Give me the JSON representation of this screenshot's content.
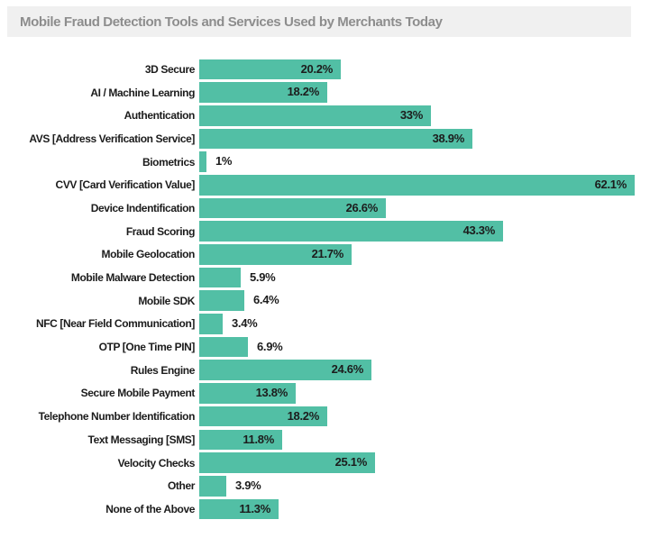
{
  "header": {
    "title": "Mobile Fraud Detection Tools and Services Used by Merchants Today"
  },
  "chart_data": {
    "type": "bar",
    "orientation": "horizontal",
    "title": "Mobile Fraud Detection Tools and Services Used by Merchants Today",
    "xlabel": "",
    "ylabel": "",
    "xlim": [
      0,
      63
    ],
    "grid": false,
    "legend": null,
    "value_suffix": "%",
    "inside_label_threshold": 10,
    "categories": [
      "3D Secure",
      "AI / Machine Learning",
      "Authentication",
      "AVS [Address Verification Service]",
      "Biometrics",
      "CVV [Card Verification Value]",
      "Device Indentification",
      "Fraud Scoring",
      "Mobile Geolocation",
      "Mobile Malware Detection",
      "Mobile SDK",
      "NFC [Near Field Communication]",
      "OTP [One Time PIN]",
      "Rules Engine",
      "Secure Mobile Payment",
      "Telephone Number Identification",
      "Text Messaging [SMS]",
      "Velocity Checks",
      "Other",
      "None of the Above"
    ],
    "values": [
      20.2,
      18.2,
      33,
      38.9,
      1,
      62.1,
      26.6,
      43.3,
      21.7,
      5.9,
      6.4,
      3.4,
      6.9,
      24.6,
      13.8,
      18.2,
      11.8,
      25.1,
      3.9,
      11.3
    ],
    "value_labels": [
      "20.2%",
      "18.2%",
      "33%",
      "38.9%",
      "1%",
      "62.1%",
      "26.6%",
      "43.3%",
      "21.7%",
      "5.9%",
      "6.4%",
      "3.4%",
      "6.9%",
      "24.6%",
      "13.8%",
      "18.2%",
      "11.8%",
      "25.1%",
      "3.9%",
      "11.3%"
    ],
    "colors": {
      "bar": "#52bfa5",
      "label_text": "#1c1c1c",
      "value_text": "#1c1c1c",
      "header_bg": "#f0f0f0",
      "header_text": "#8d8d8d",
      "background": "#ffffff"
    }
  }
}
